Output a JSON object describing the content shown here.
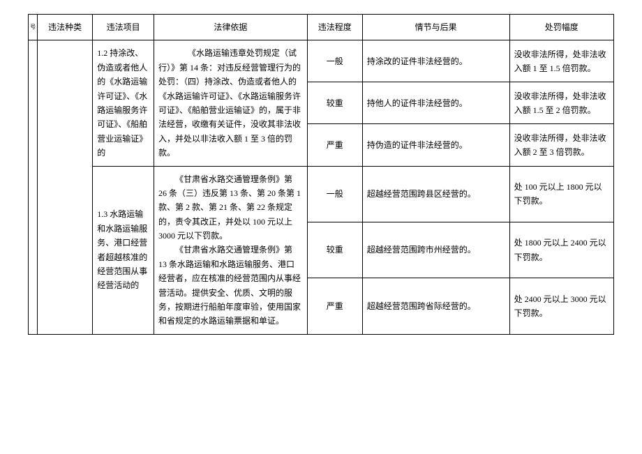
{
  "headers": {
    "seq": "号",
    "type": "违法种类",
    "item": "违法项目",
    "basis": "法律依据",
    "level": "违法程度",
    "circ": "情节与后果",
    "penalty": "处罚幅度"
  },
  "rows": [
    {
      "item": "1.2 持涂改、伪造或者他人的《水路运输许可证》、《水路运输服务许可证》、《船舶营业运输证》的",
      "basis": "　　《水路运输违章处罚规定（试行）》第 14 条：对违反经营管理行为的处罚：（四）持涂改、伪造或者他人的《水路运输许可证》、《水路运输服务许可证》、《船舶营业运输证》的，属于非法经营，收缴有关证件，没收其非法收入，并处以非法收入额 1 至 3 倍的罚款。",
      "levels": [
        {
          "level": "一般",
          "circ": "持涂改的证件非法经营的。",
          "penalty": "没收非法所得，处非法收入额 1 至 1.5 倍罚款。"
        },
        {
          "level": "较重",
          "circ": "持他人的证件非法经营的。",
          "penalty": "没收非法所得，处非法收入额 1.5 至 2 倍罚款。"
        },
        {
          "level": "严重",
          "circ": "持伪造的证件非法经营的。",
          "penalty": "没收非法所得，处非法收入额 2 至 3 倍罚款。"
        }
      ]
    },
    {
      "item": "1.3 水路运输和水路运输服务、港口经营者超越核准的经营范围从事经营活动的",
      "basis_p1": "《甘肃省水路交通管理条例》第 26 条（三）违反第 13 条、第 20 条第 1 款、第 2 款、第 21 条、第 22 条规定的，责令其改正，并处以 100 元以上 3000 元以下罚款。",
      "basis_p2": "《甘肃省水路交通管理条例》第 13 条水路运输和水路运输服务、港口经营者，应在核准的经营范围内从事经营活动。提供安全、优质、文明的服务，按期进行船舶年度审验，使用国家和省规定的水路运输票据和单证。",
      "levels": [
        {
          "level": "一般",
          "circ": "超越经营范围跨县区经营的。",
          "penalty": "处 100 元以上 1800 元以下罚款。"
        },
        {
          "level": "较重",
          "circ": "超越经营范围跨市州经营的。",
          "penalty": "处 1800 元以上 2400 元以下罚款。"
        },
        {
          "level": "严重",
          "circ": "超越经营范围跨省际经营的。",
          "penalty": "处 2400 元以上 3000 元以下罚款。"
        }
      ]
    }
  ]
}
